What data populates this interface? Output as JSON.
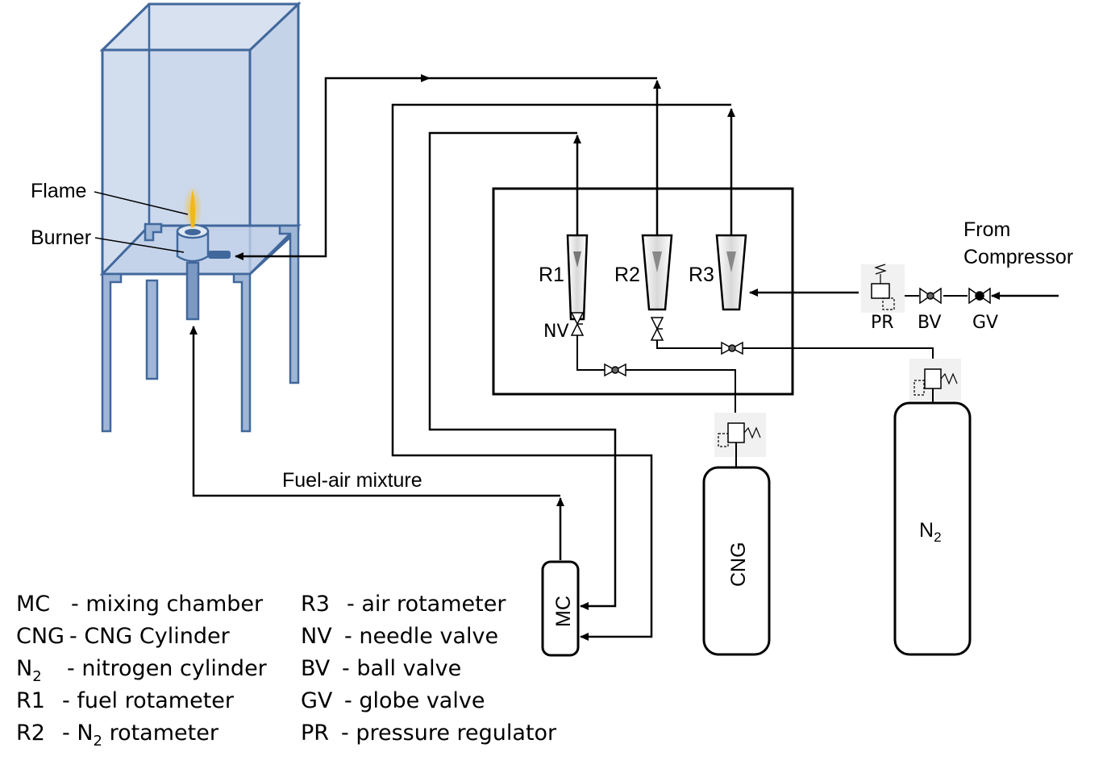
{
  "labels": {
    "flame": "Flame",
    "burner": "Burner",
    "fuel_air_mixture": "Fuel-air mixture",
    "from_compressor_1": "From",
    "from_compressor_2": "Compressor",
    "r1": "R1",
    "r2": "R2",
    "r3": "R3",
    "nv": "NV",
    "pr": "PR",
    "bv": "BV",
    "gv": "GV",
    "cng": "CNG",
    "mc": "MC",
    "n2_base": "N",
    "n2_sub": "2"
  },
  "legend_left": [
    {
      "code": "MC",
      "code_sub": "",
      "desc": "- mixing chamber",
      "desc_sub": "",
      "desc_tail": ""
    },
    {
      "code": "CNG",
      "code_sub": "",
      "desc": "- CNG Cylinder",
      "desc_sub": "",
      "desc_tail": ""
    },
    {
      "code": "N",
      "code_sub": "2",
      "desc": "- nitrogen cylinder",
      "desc_sub": "",
      "desc_tail": ""
    },
    {
      "code": "R1",
      "code_sub": "",
      "desc": "- fuel rotameter",
      "desc_sub": "",
      "desc_tail": ""
    },
    {
      "code": "R2",
      "code_sub": "",
      "desc": "- N",
      "desc_sub": "2",
      "desc_tail": " rotameter"
    }
  ],
  "legend_right": [
    {
      "code": "R3",
      "desc": "- air rotameter"
    },
    {
      "code": "NV",
      "desc": "- needle valve"
    },
    {
      "code": "BV",
      "desc": "- ball valve"
    },
    {
      "code": "GV",
      "desc": "- globe valve"
    },
    {
      "code": "PR",
      "desc": "- pressure regulator"
    }
  ],
  "colors": {
    "enclosure_fill": "#c9d6ea",
    "enclosure_stroke": "#41689c",
    "flame": "#f2b81a",
    "line": "#000000"
  }
}
